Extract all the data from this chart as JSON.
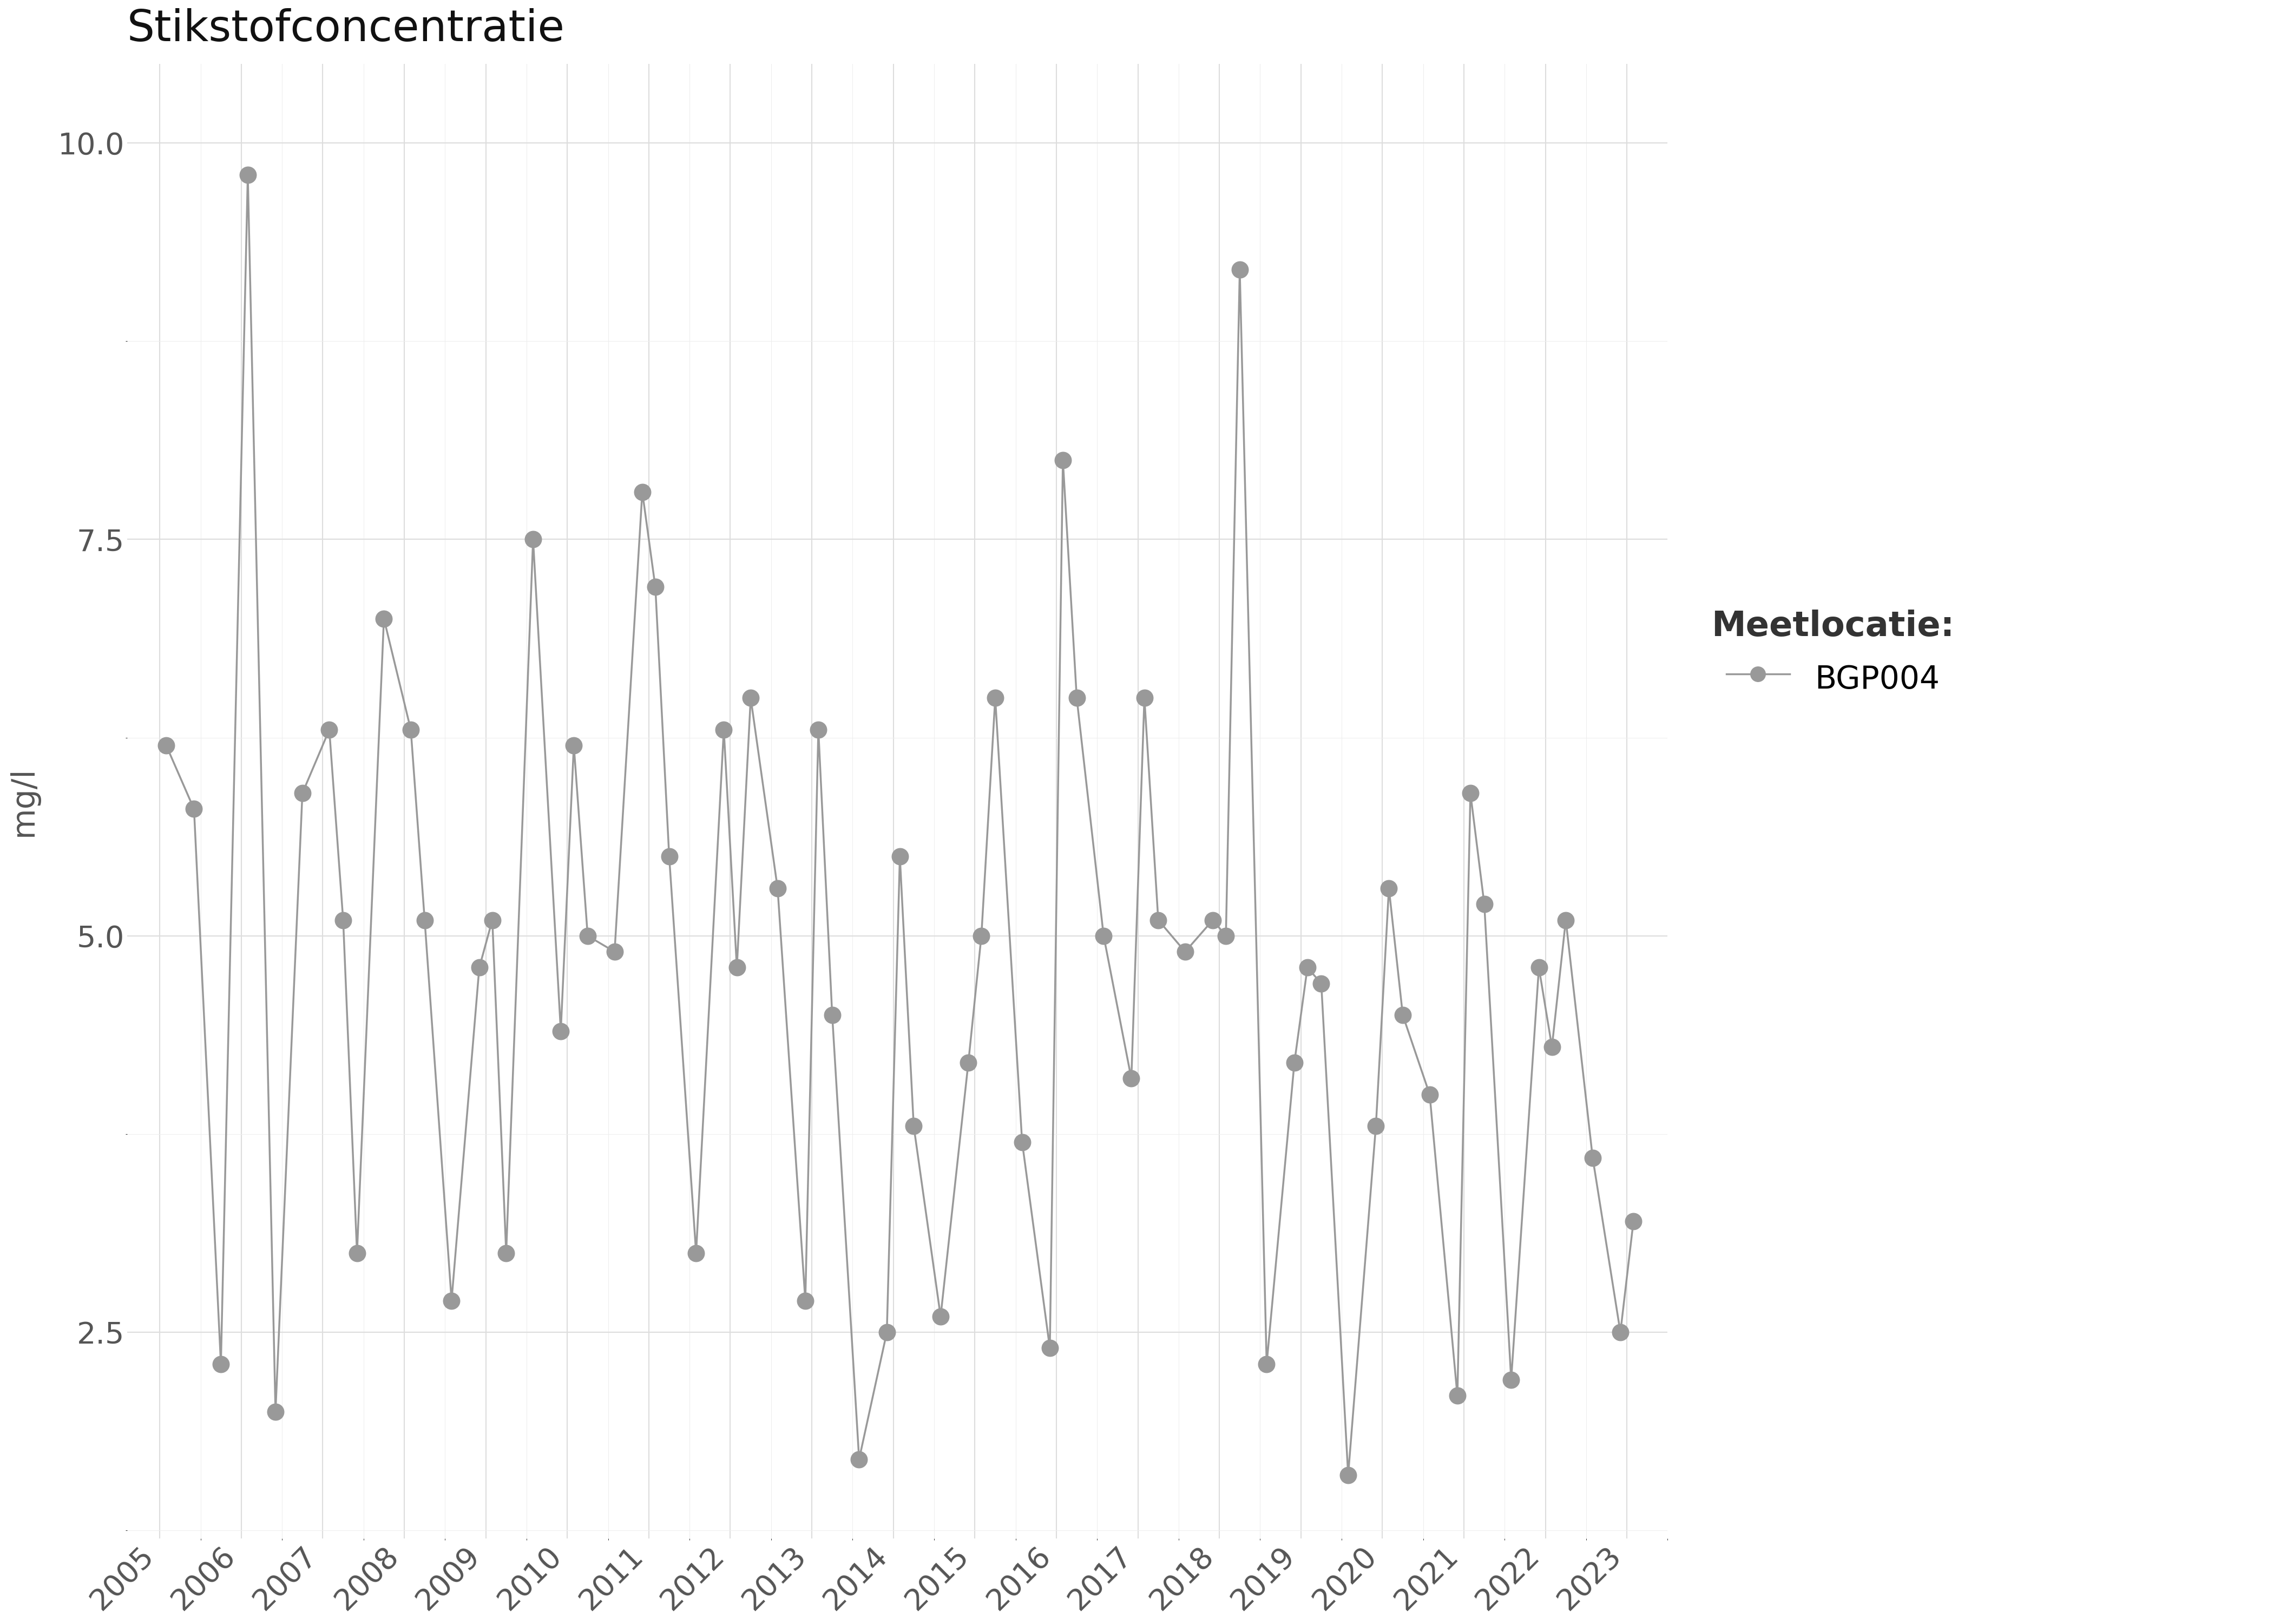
{
  "title": "Stikstofconcentratie",
  "ylabel": "mg/l",
  "legend_title": "Meetlocatie:",
  "legend_label": "BGP004",
  "line_color": "#999999",
  "marker_color": "#999999",
  "background_color": "#ffffff",
  "grid_color_major": "#dddddd",
  "grid_color_minor": "#eeeeee",
  "ylim": [
    1.2,
    10.5
  ],
  "yticks": [
    2.5,
    5.0,
    7.5,
    10.0
  ],
  "title_fontsize": 58,
  "axis_fontsize": 42,
  "tick_fontsize": 40,
  "legend_fontsize": 42,
  "legend_title_fontsize": 46,
  "marker_size": 22,
  "line_width": 2.5,
  "dates": [
    2005.08,
    2005.42,
    2005.75,
    2006.08,
    2006.42,
    2006.75,
    2007.08,
    2007.25,
    2007.42,
    2007.75,
    2008.08,
    2008.25,
    2008.58,
    2008.92,
    2009.08,
    2009.25,
    2009.58,
    2009.92,
    2010.08,
    2010.25,
    2010.58,
    2010.92,
    2011.08,
    2011.25,
    2011.58,
    2011.92,
    2012.08,
    2012.25,
    2012.58,
    2012.92,
    2013.08,
    2013.25,
    2013.58,
    2013.92,
    2014.08,
    2014.25,
    2014.58,
    2014.92,
    2015.08,
    2015.25,
    2015.58,
    2015.92,
    2016.08,
    2016.25,
    2016.58,
    2016.92,
    2017.08,
    2017.25,
    2017.58,
    2017.92,
    2018.08,
    2018.25,
    2018.58,
    2018.92,
    2019.08,
    2019.25,
    2019.58,
    2019.92,
    2020.08,
    2020.25,
    2020.58,
    2020.92,
    2021.08,
    2021.25,
    2021.58,
    2021.92,
    2022.08,
    2022.25,
    2022.58,
    2022.92,
    2023.08
  ],
  "values": [
    6.2,
    5.8,
    2.3,
    9.8,
    2.0,
    5.9,
    6.3,
    5.1,
    3.0,
    7.0,
    6.3,
    5.1,
    2.7,
    4.8,
    5.1,
    3.0,
    7.5,
    4.4,
    6.2,
    5.0,
    4.9,
    7.8,
    7.2,
    5.5,
    3.0,
    6.3,
    4.8,
    6.5,
    5.3,
    2.7,
    6.3,
    4.5,
    1.7,
    2.5,
    5.5,
    3.8,
    2.6,
    4.2,
    5.0,
    6.5,
    3.7,
    2.4,
    8.0,
    6.5,
    5.0,
    4.1,
    6.5,
    5.1,
    4.9,
    5.1,
    5.0,
    9.2,
    2.3,
    4.2,
    4.8,
    4.7,
    1.6,
    3.8,
    5.3,
    4.5,
    4.0,
    2.1,
    5.9,
    5.2,
    2.2,
    4.8,
    4.3,
    5.1,
    3.6,
    2.5,
    3.2
  ],
  "xticks": [
    2005,
    2006,
    2007,
    2008,
    2009,
    2010,
    2011,
    2012,
    2013,
    2014,
    2015,
    2016,
    2017,
    2018,
    2019,
    2020,
    2021,
    2022,
    2023
  ]
}
